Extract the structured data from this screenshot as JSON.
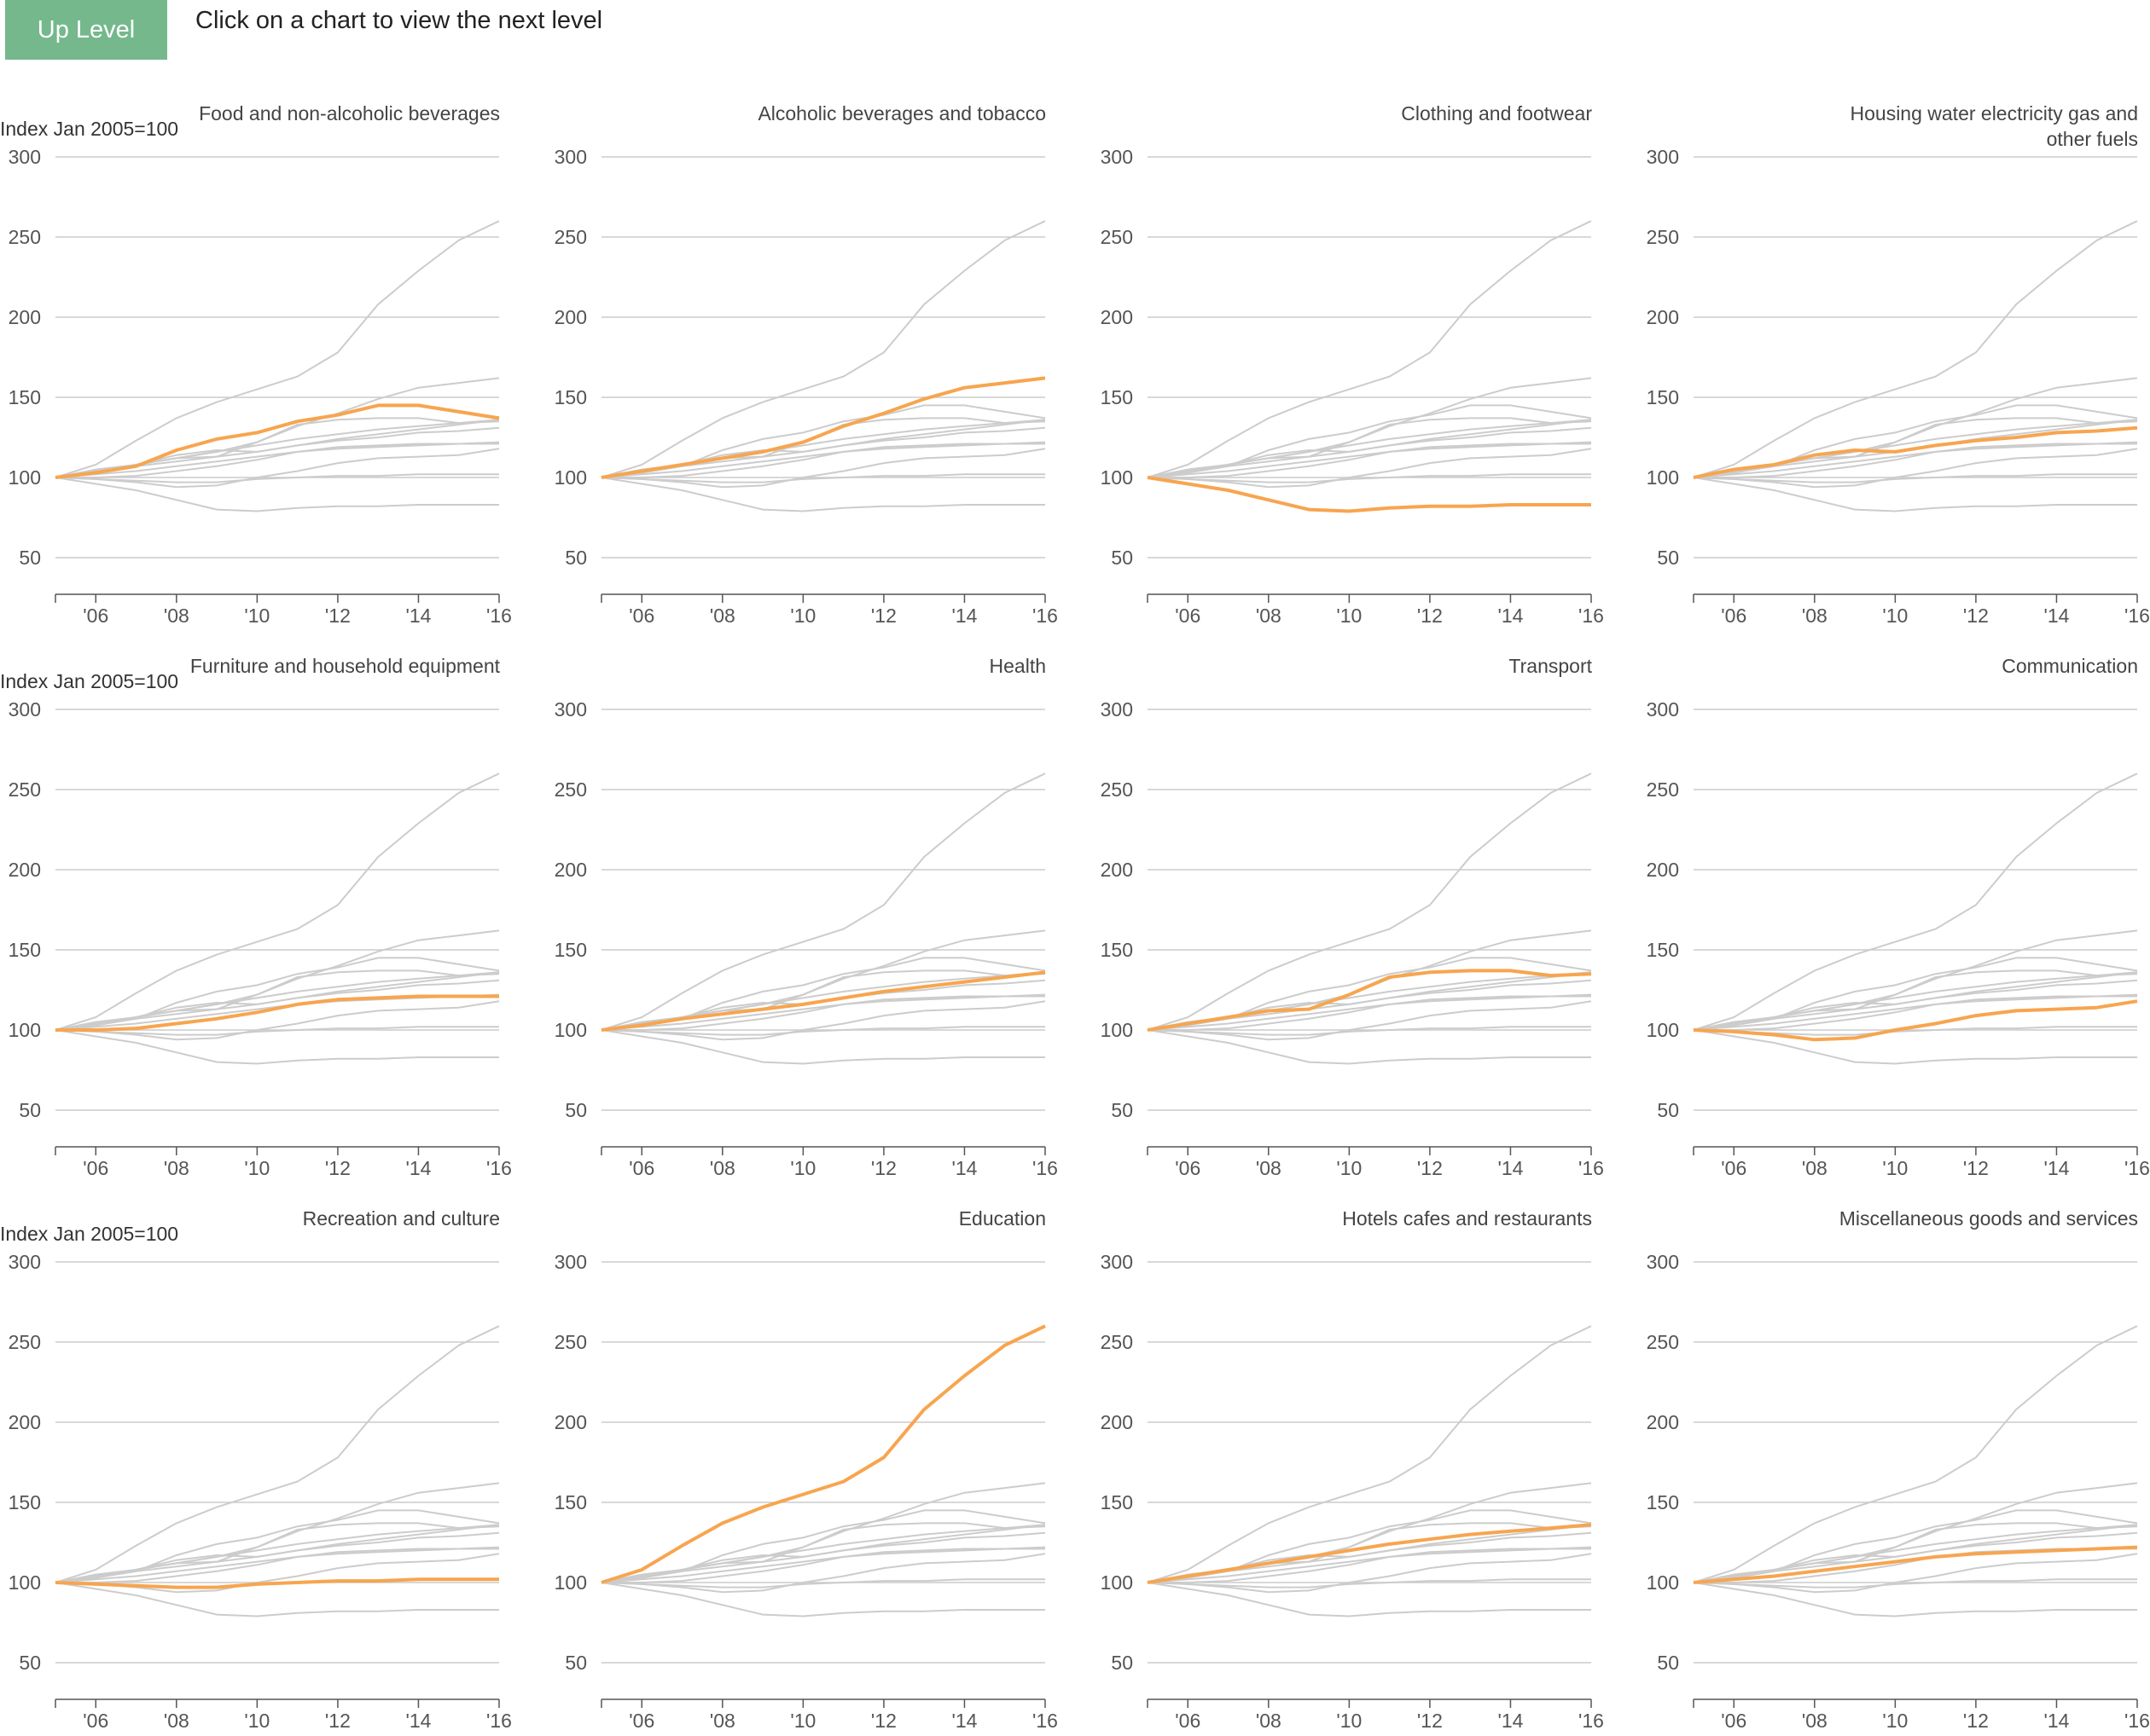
{
  "toolbar": {
    "up_level_label": "Up Level",
    "instruction": "Click on a chart to view the next level"
  },
  "colors": {
    "button_bg": "#74b88c",
    "highlight_line": "#f7a54f",
    "background_line": "#cccccc",
    "gridline": "#cccccc"
  },
  "chart_data": {
    "type": "line",
    "ylabel": "Index Jan 2005=100",
    "ylim": [
      30,
      300
    ],
    "xlim": [
      2005,
      2016
    ],
    "yticks": [
      50,
      100,
      150,
      200,
      250,
      300
    ],
    "xticks": [
      2006,
      2008,
      2010,
      2012,
      2014,
      2016
    ],
    "xtick_labels": [
      "'06",
      "'08",
      "'10",
      "'12",
      "'14",
      "'16"
    ],
    "x": [
      2005,
      2006,
      2007,
      2008,
      2009,
      2010,
      2011,
      2012,
      2013,
      2014,
      2015,
      2016
    ],
    "grid": true,
    "series": [
      {
        "name": "Food and non-alcoholic beverages",
        "values": [
          100,
          103,
          107,
          117,
          124,
          128,
          135,
          139,
          145,
          145,
          141,
          137
        ]
      },
      {
        "name": "Alcoholic beverages and tobacco",
        "values": [
          100,
          104,
          108,
          112,
          116,
          122,
          132,
          140,
          149,
          156,
          159,
          162
        ]
      },
      {
        "name": "Clothing and footwear",
        "values": [
          100,
          96,
          92,
          86,
          80,
          79,
          81,
          82,
          82,
          83,
          83,
          83
        ]
      },
      {
        "name": "Housing water electricity gas and other fuels",
        "values": [
          100,
          105,
          108,
          114,
          117,
          116,
          120,
          123,
          125,
          128,
          129,
          131
        ]
      },
      {
        "name": "Furniture and household equipment",
        "values": [
          100,
          100,
          101,
          104,
          107,
          111,
          116,
          119,
          120,
          121,
          121,
          121
        ]
      },
      {
        "name": "Health",
        "values": [
          100,
          103,
          107,
          110,
          113,
          116,
          120,
          124,
          127,
          130,
          133,
          136
        ]
      },
      {
        "name": "Transport",
        "values": [
          100,
          104,
          108,
          112,
          113,
          122,
          133,
          136,
          137,
          137,
          134,
          135
        ]
      },
      {
        "name": "Communication",
        "values": [
          100,
          99,
          97,
          94,
          95,
          100,
          104,
          109,
          112,
          113,
          114,
          118
        ]
      },
      {
        "name": "Recreation and culture",
        "values": [
          100,
          99,
          98,
          97,
          97,
          99,
          100,
          101,
          101,
          102,
          102,
          102
        ]
      },
      {
        "name": "Education",
        "values": [
          100,
          108,
          123,
          137,
          147,
          155,
          163,
          178,
          208,
          229,
          248,
          260
        ]
      },
      {
        "name": "Hotels cafes and restaurants",
        "values": [
          100,
          104,
          108,
          112,
          116,
          120,
          124,
          127,
          130,
          132,
          134,
          136
        ]
      },
      {
        "name": "Miscellaneous goods and services",
        "values": [
          100,
          102,
          104,
          107,
          110,
          113,
          116,
          118,
          119,
          120,
          121,
          122
        ]
      }
    ],
    "panels": [
      {
        "title": "Food and non-alcoholic beverages",
        "highlight": 0,
        "show_ylabel": true
      },
      {
        "title": "Alcoholic beverages and tobacco",
        "highlight": 1,
        "show_ylabel": false
      },
      {
        "title": "Clothing and footwear",
        "highlight": 2,
        "show_ylabel": false
      },
      {
        "title": "Housing water electricity gas and other fuels",
        "highlight": 3,
        "show_ylabel": false
      },
      {
        "title": "Furniture and household equipment",
        "highlight": 4,
        "show_ylabel": true
      },
      {
        "title": "Health",
        "highlight": 5,
        "show_ylabel": false
      },
      {
        "title": "Transport",
        "highlight": 6,
        "show_ylabel": false
      },
      {
        "title": "Communication",
        "highlight": 7,
        "show_ylabel": false
      },
      {
        "title": "Recreation and culture",
        "highlight": 8,
        "show_ylabel": true
      },
      {
        "title": "Education",
        "highlight": 9,
        "show_ylabel": false
      },
      {
        "title": "Hotels cafes and restaurants",
        "highlight": 10,
        "show_ylabel": false
      },
      {
        "title": "Miscellaneous goods and services",
        "highlight": 11,
        "show_ylabel": false
      }
    ]
  }
}
